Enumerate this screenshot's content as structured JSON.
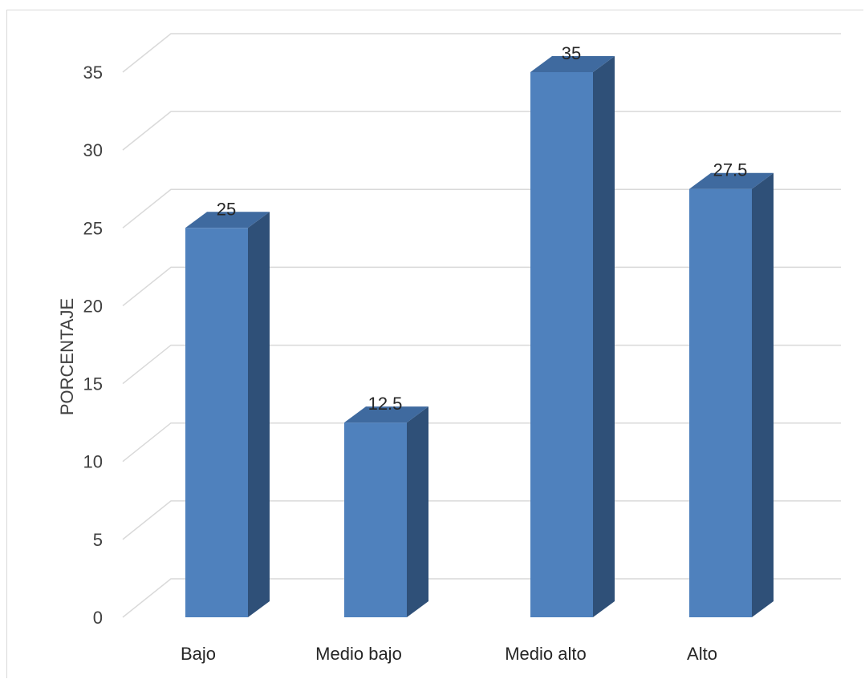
{
  "chart_data": {
    "type": "bar",
    "style": "3d-column",
    "categories": [
      "Bajo",
      "Medio bajo",
      "Medio alto",
      "Alto"
    ],
    "values": [
      25,
      12.5,
      35,
      27.5
    ],
    "data_labels": [
      "25",
      "12.5",
      "35",
      "27.5"
    ],
    "title": "",
    "xlabel": "",
    "ylabel": "PORCENTAJE",
    "ylim": [
      0,
      35
    ],
    "yticks": [
      0,
      5,
      10,
      15,
      20,
      25,
      30,
      35
    ],
    "ytick_labels": [
      "0",
      "5",
      "10",
      "15",
      "20",
      "25",
      "30",
      "35"
    ],
    "grid": true,
    "legend": "none",
    "colors": {
      "bar_front": "#4f81bd",
      "bar_side": "#2f5078",
      "bar_top": "#3f6a9f",
      "grid": "#d9d9d9"
    }
  }
}
